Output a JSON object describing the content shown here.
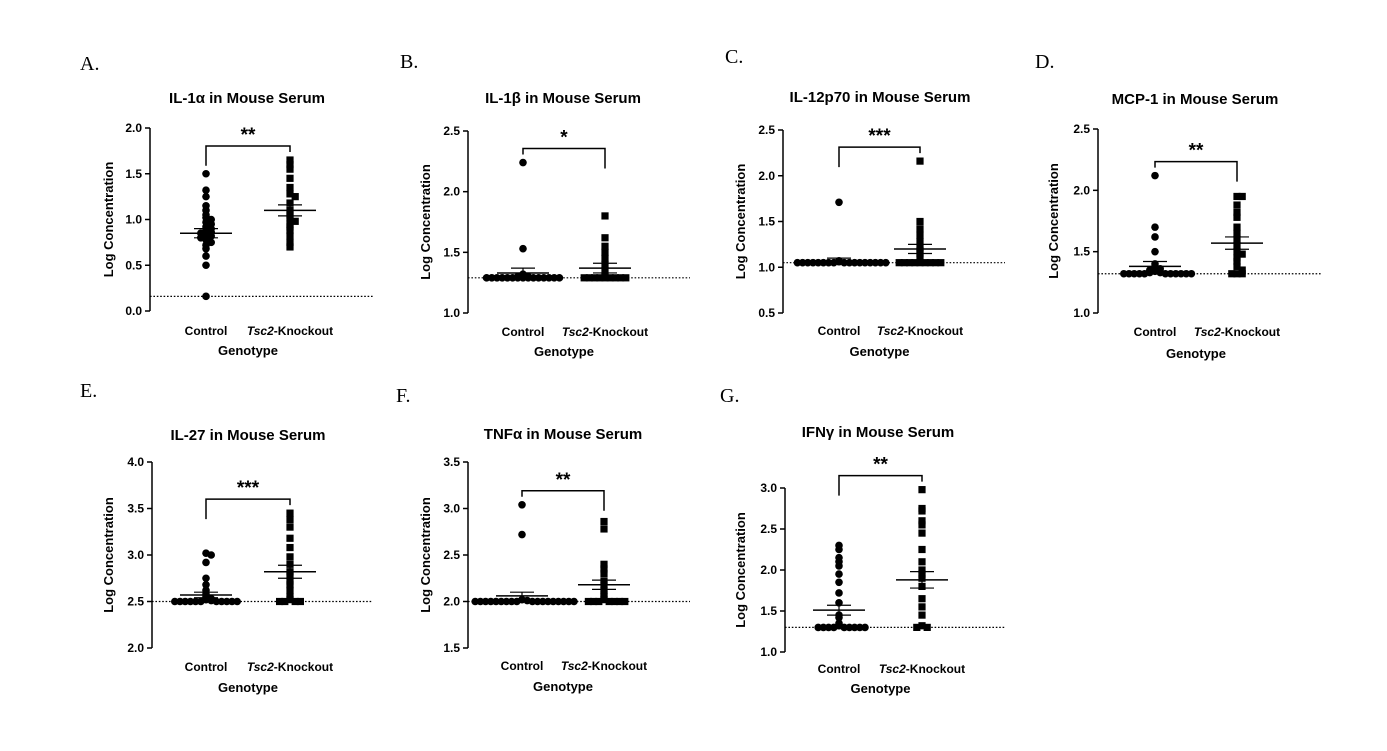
{
  "chart_data": [
    {
      "type": "scatter",
      "panel": "A.",
      "title": "IL-1α in Mouse Serum",
      "ylabel": "Log Concentration",
      "xlabel": "Genotype",
      "categories": [
        "Control",
        "Tsc2-Knockout"
      ],
      "category_italic_prefix": [
        "",
        "Tsc2"
      ],
      "yticks": [
        "0.0",
        "0.5",
        "1.0",
        "1.5",
        "2.0"
      ],
      "ylim": [
        0,
        2.0
      ],
      "baseline": 0.16,
      "significance": "**",
      "series": [
        {
          "marker": "circle",
          "values": [
            1.5,
            1.32,
            1.25,
            1.15,
            1.1,
            1.05,
            1.02,
            1.0,
            0.97,
            0.95,
            0.92,
            0.9,
            0.88,
            0.86,
            0.85,
            0.83,
            0.82,
            0.8,
            0.78,
            0.75,
            0.72,
            0.68,
            0.6,
            0.5,
            0.16
          ],
          "mean": 0.85,
          "sem": 0.05
        },
        {
          "marker": "square",
          "values": [
            1.65,
            1.6,
            1.55,
            1.45,
            1.35,
            1.28,
            1.25,
            1.18,
            1.1,
            1.05,
            1.02,
            0.98,
            0.95,
            0.92,
            0.88,
            0.82,
            0.75,
            0.7
          ],
          "mean": 1.1,
          "sem": 0.06
        }
      ]
    },
    {
      "type": "scatter",
      "panel": "B.",
      "title": "IL-1β in Mouse Serum",
      "ylabel": "Log Concentration",
      "xlabel": "Genotype",
      "categories": [
        "Control",
        "Tsc2-Knockout"
      ],
      "category_italic_prefix": [
        "",
        "Tsc2"
      ],
      "yticks": [
        "1.0",
        "1.5",
        "2.0",
        "2.5"
      ],
      "ylim": [
        1.0,
        2.5
      ],
      "baseline": 1.29,
      "significance": "*",
      "series": [
        {
          "marker": "circle",
          "values": [
            2.24,
            1.53,
            1.32,
            1.3,
            1.3,
            1.29,
            1.29,
            1.29,
            1.29,
            1.29,
            1.29,
            1.29,
            1.29,
            1.29,
            1.29,
            1.29,
            1.29,
            1.29,
            1.29,
            1.29
          ],
          "mean": 1.33,
          "sem": 0.04
        },
        {
          "marker": "square",
          "values": [
            1.8,
            1.62,
            1.55,
            1.5,
            1.45,
            1.4,
            1.35,
            1.3,
            1.29,
            1.29,
            1.29,
            1.29,
            1.29,
            1.29,
            1.29,
            1.29,
            1.29
          ],
          "mean": 1.37,
          "sem": 0.04
        }
      ]
    },
    {
      "type": "scatter",
      "panel": "C.",
      "title": "IL-12p70 in Mouse Serum",
      "ylabel": "Log Concentration",
      "xlabel": "Genotype",
      "categories": [
        "Control",
        "Tsc2-Knockout"
      ],
      "category_italic_prefix": [
        "",
        "Tsc2"
      ],
      "yticks": [
        "0.5",
        "1.0",
        "1.5",
        "2.0",
        "2.5"
      ],
      "ylim": [
        0.5,
        2.5
      ],
      "baseline": 1.05,
      "significance": "***",
      "series": [
        {
          "marker": "circle",
          "values": [
            1.71,
            1.07,
            1.06,
            1.05,
            1.05,
            1.05,
            1.05,
            1.05,
            1.05,
            1.05,
            1.05,
            1.05,
            1.05,
            1.05,
            1.05,
            1.05,
            1.05,
            1.05,
            1.05,
            1.05
          ],
          "mean": 1.07,
          "sem": 0.03
        },
        {
          "marker": "square",
          "values": [
            2.16,
            1.5,
            1.42,
            1.35,
            1.28,
            1.22,
            1.18,
            1.15,
            1.1,
            1.05,
            1.05,
            1.05,
            1.05,
            1.05,
            1.05,
            1.05,
            1.05,
            1.05
          ],
          "mean": 1.2,
          "sem": 0.05
        }
      ]
    },
    {
      "type": "scatter",
      "panel": "D.",
      "title": "MCP-1 in Mouse Serum",
      "ylabel": "Log Concentration",
      "xlabel": "Genotype",
      "categories": [
        "Control",
        "Tsc2-Knockout"
      ],
      "category_italic_prefix": [
        "",
        "Tsc2"
      ],
      "yticks": [
        "1.0",
        "1.5",
        "2.0",
        "2.5"
      ],
      "ylim": [
        1.0,
        2.5
      ],
      "baseline": 1.32,
      "significance": "**",
      "series": [
        {
          "marker": "circle",
          "values": [
            2.12,
            1.7,
            1.62,
            1.5,
            1.4,
            1.38,
            1.36,
            1.35,
            1.34,
            1.33,
            1.33,
            1.32,
            1.32,
            1.32,
            1.32,
            1.32,
            1.32,
            1.32,
            1.32,
            1.32,
            1.32,
            1.32
          ],
          "mean": 1.38,
          "sem": 0.04
        },
        {
          "marker": "square",
          "values": [
            1.95,
            1.95,
            1.88,
            1.82,
            1.78,
            1.7,
            1.65,
            1.6,
            1.55,
            1.5,
            1.48,
            1.45,
            1.42,
            1.38,
            1.35,
            1.32,
            1.32,
            1.32
          ],
          "mean": 1.57,
          "sem": 0.05
        }
      ]
    },
    {
      "type": "scatter",
      "panel": "E.",
      "title": "IL-27 in Mouse Serum",
      "ylabel": "Log Concentration",
      "xlabel": "Genotype",
      "categories": [
        "Control",
        "Tsc2-Knockout"
      ],
      "category_italic_prefix": [
        "",
        "Tsc2"
      ],
      "yticks": [
        "2.0",
        "2.5",
        "3.0",
        "3.5",
        "4.0"
      ],
      "ylim": [
        2.0,
        4.0
      ],
      "baseline": 2.5,
      "significance": "***",
      "series": [
        {
          "marker": "circle",
          "values": [
            3.02,
            3.0,
            2.92,
            2.75,
            2.68,
            2.62,
            2.58,
            2.55,
            2.53,
            2.52,
            2.51,
            2.5,
            2.5,
            2.5,
            2.5,
            2.5,
            2.5,
            2.5,
            2.5,
            2.5,
            2.5,
            2.5
          ],
          "mean": 2.57,
          "sem": 0.03
        },
        {
          "marker": "square",
          "values": [
            3.45,
            3.38,
            3.3,
            3.18,
            3.08,
            2.98,
            2.9,
            2.82,
            2.78,
            2.72,
            2.68,
            2.62,
            2.55,
            2.52,
            2.5,
            2.5,
            2.5,
            2.5
          ],
          "mean": 2.82,
          "sem": 0.07
        }
      ]
    },
    {
      "type": "scatter",
      "panel": "F.",
      "title": "TNFα in Mouse Serum",
      "ylabel": "Log Concentration",
      "xlabel": "Genotype",
      "categories": [
        "Control",
        "Tsc2-Knockout"
      ],
      "category_italic_prefix": [
        "",
        "Tsc2"
      ],
      "yticks": [
        "1.5",
        "2.0",
        "2.5",
        "3.0",
        "3.5"
      ],
      "ylim": [
        1.5,
        3.5
      ],
      "baseline": 2.0,
      "significance": "**",
      "series": [
        {
          "marker": "circle",
          "values": [
            3.04,
            2.72,
            2.02,
            2.01,
            2.0,
            2.0,
            2.0,
            2.0,
            2.0,
            2.0,
            2.0,
            2.0,
            2.0,
            2.0,
            2.0,
            2.0,
            2.0,
            2.0,
            2.0,
            2.0,
            2.0,
            2.0
          ],
          "mean": 2.06,
          "sem": 0.04
        },
        {
          "marker": "square",
          "values": [
            2.86,
            2.78,
            2.4,
            2.35,
            2.3,
            2.22,
            2.18,
            2.12,
            2.08,
            2.05,
            2.02,
            2.0,
            2.0,
            2.0,
            2.0,
            2.0,
            2.0,
            2.0
          ],
          "mean": 2.18,
          "sem": 0.05
        }
      ]
    },
    {
      "type": "scatter",
      "panel": "G.",
      "title": "IFNγ in Mouse Serum",
      "ylabel": "Log Concentration",
      "xlabel": "Genotype",
      "categories": [
        "Control",
        "Tsc2-Knockout"
      ],
      "category_italic_prefix": [
        "",
        "Tsc2"
      ],
      "yticks": [
        "1.0",
        "1.5",
        "2.0",
        "2.5",
        "3.0"
      ],
      "ylim": [
        1.0,
        3.0
      ],
      "baseline": 1.3,
      "significance": "**",
      "series": [
        {
          "marker": "circle",
          "values": [
            2.3,
            2.25,
            2.15,
            2.1,
            2.05,
            1.95,
            1.85,
            1.72,
            1.6,
            1.45,
            1.42,
            1.35,
            1.32,
            1.3,
            1.3,
            1.3,
            1.3,
            1.3,
            1.3,
            1.3,
            1.3,
            1.3
          ],
          "mean": 1.51,
          "sem": 0.06
        },
        {
          "marker": "square",
          "values": [
            2.98,
            2.75,
            2.72,
            2.6,
            2.55,
            2.45,
            2.25,
            2.1,
            2.0,
            1.95,
            1.9,
            1.8,
            1.65,
            1.55,
            1.45,
            1.32,
            1.3,
            1.3
          ],
          "mean": 1.88,
          "sem": 0.1
        }
      ]
    }
  ]
}
